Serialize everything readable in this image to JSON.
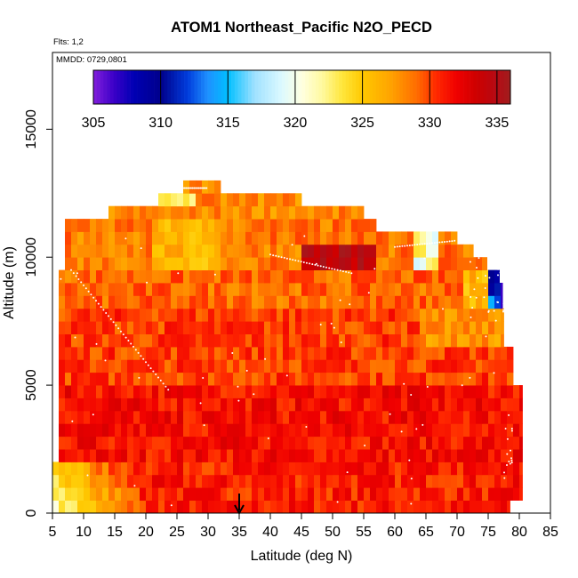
{
  "chart_data": {
    "type": "heatmap",
    "title": "ATOM1 Northeast_Pacific N2O_PECD",
    "flights_label": "Flts: 1,2",
    "date_label": "MMDD: 0729,0801",
    "xlabel": "Latitude (deg N)",
    "ylabel": "Altitude (m)",
    "xlim": [
      5,
      85
    ],
    "ylim": [
      0,
      18000
    ],
    "x_ticks": [
      "5",
      "10",
      "15",
      "20",
      "25",
      "30",
      "35",
      "40",
      "45",
      "50",
      "55",
      "60",
      "65",
      "70",
      "75",
      "80",
      "85"
    ],
    "y_ticks": [
      "0",
      "5000",
      "10000",
      "15000"
    ],
    "colorbar": {
      "min": 305,
      "max": 336,
      "ticks": [
        "305",
        "310",
        "315",
        "320",
        "325",
        "330",
        "335"
      ],
      "colors": [
        "#8a2be2",
        "#0000cd",
        "#00008b",
        "#1e90ff",
        "#00bfff",
        "#e0ffff",
        "#ffffe0",
        "#ffd700",
        "#ffa500",
        "#ff4500",
        "#ff0000",
        "#b22222"
      ]
    },
    "marker": {
      "latitude": 35,
      "label": "reference latitude arrow"
    },
    "value_summary": "Mostly 325-334 across 5-80N; surface-to-2 km south of 20N ~322-328; highest values ~334-336 near 10 km at 44-57N; low values ~305-317 near 76-78N at 8-10 km"
  }
}
